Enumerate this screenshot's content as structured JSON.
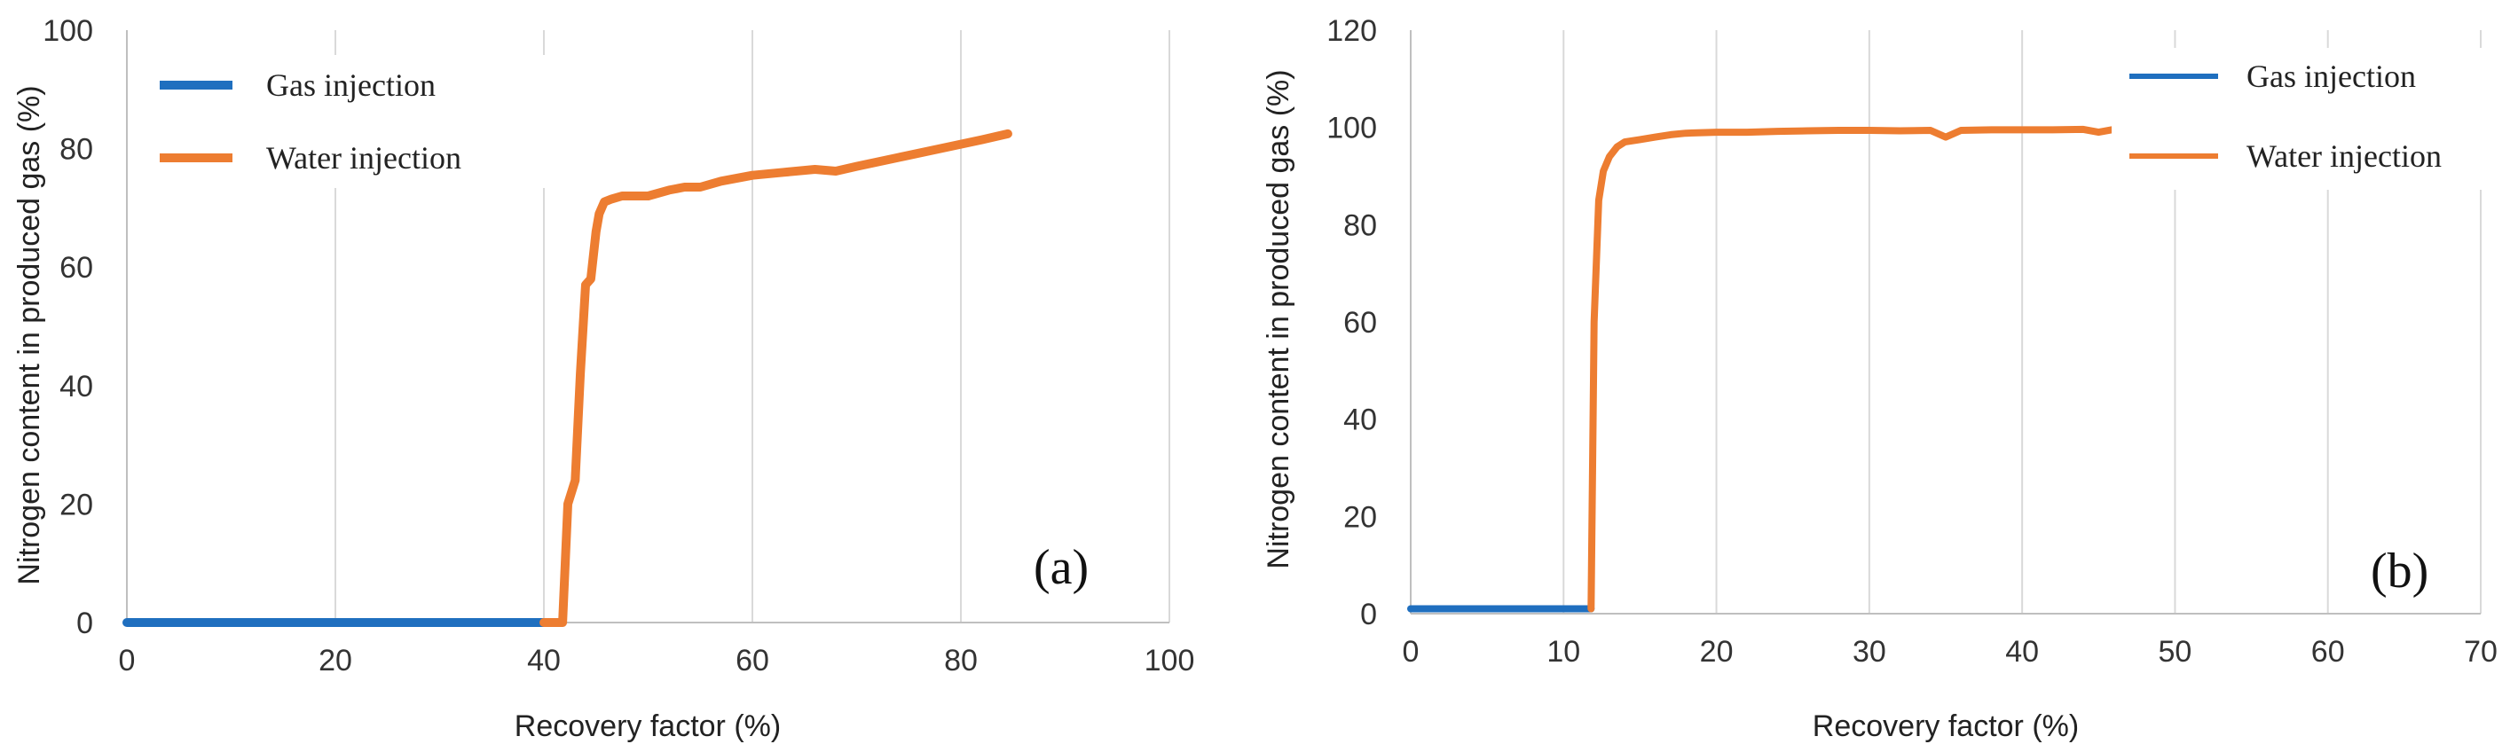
{
  "chart_data": [
    {
      "type": "line",
      "panel_label": "(a)",
      "xlabel": "Recovery factor (%)",
      "ylabel": "Nitrogen content in produced gas (%)",
      "xlim": [
        0,
        100
      ],
      "ylim": [
        0,
        100
      ],
      "x_ticks": [
        0,
        20,
        40,
        60,
        80,
        100
      ],
      "y_ticks": [
        0,
        20,
        40,
        60,
        80,
        100
      ],
      "grid": "vertical",
      "legend": "top-left",
      "series": [
        {
          "name": "Gas injection",
          "color": "#1f6fbf",
          "x": [
            0,
            10,
            20,
            30,
            40
          ],
          "y": [
            0,
            0,
            0,
            0,
            0
          ]
        },
        {
          "name": "Water injection",
          "color": "#ed7d31",
          "x": [
            40,
            41.8,
            42.3,
            43,
            43.5,
            44,
            44.5,
            45,
            45.3,
            45.8,
            46.5,
            47.5,
            50,
            52,
            53.5,
            55,
            57,
            60,
            63,
            66,
            68,
            70,
            74,
            78,
            82,
            84.5
          ],
          "y": [
            0,
            0,
            20,
            24,
            42,
            57,
            58,
            66,
            69,
            71,
            71.5,
            72,
            72,
            73,
            73.5,
            73.5,
            74.5,
            75.5,
            76,
            76.5,
            76.2,
            77,
            78.5,
            80,
            81.5,
            82.5
          ]
        }
      ]
    },
    {
      "type": "line",
      "panel_label": "(b)",
      "xlabel": "Recovery factor (%)",
      "ylabel": "Nitrogen content in produced gas (%)",
      "xlim": [
        0,
        70
      ],
      "ylim": [
        0,
        120
      ],
      "x_ticks": [
        0,
        10,
        20,
        30,
        40,
        50,
        60,
        70
      ],
      "y_ticks": [
        0,
        20,
        40,
        60,
        80,
        100,
        120
      ],
      "grid": "vertical",
      "legend": "top-right",
      "series": [
        {
          "name": "Gas injection",
          "color": "#1f6fbf",
          "x": [
            0,
            5,
            10,
            11.8
          ],
          "y": [
            1,
            1,
            1,
            1
          ]
        },
        {
          "name": "Water injection",
          "color": "#ed7d31",
          "x": [
            11.8,
            12,
            12.3,
            12.6,
            13,
            13.5,
            14,
            15,
            16,
            17,
            18,
            20,
            22,
            24,
            26,
            28,
            30,
            32,
            34,
            35,
            36,
            38,
            40,
            42,
            44,
            45,
            46,
            46.8
          ],
          "y": [
            1,
            60,
            85,
            91,
            94,
            96,
            97,
            97.5,
            98,
            98.5,
            98.8,
            99,
            99,
            99.2,
            99.3,
            99.4,
            99.4,
            99.3,
            99.4,
            98,
            99.4,
            99.5,
            99.5,
            99.5,
            99.6,
            99,
            99.6,
            97
          ]
        }
      ]
    }
  ]
}
